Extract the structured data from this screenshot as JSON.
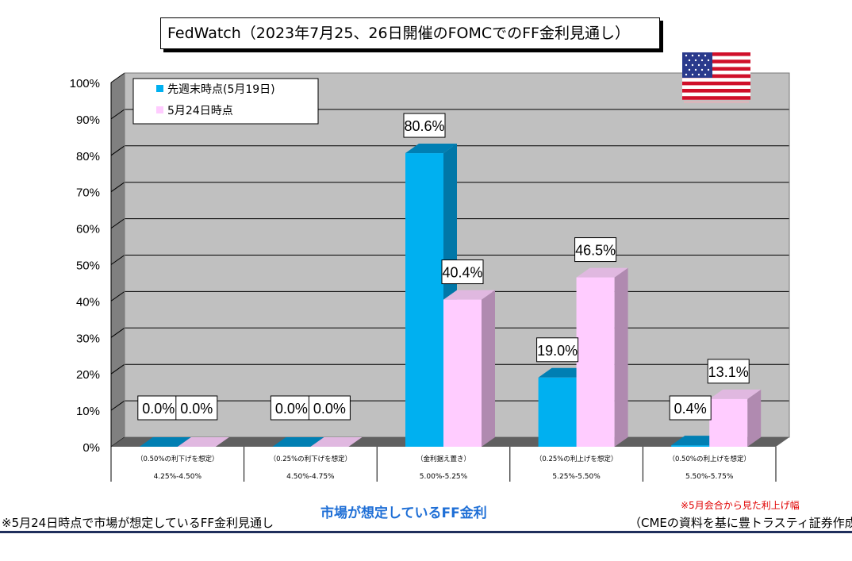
{
  "title": "FedWatch（2023年7月25、26日開催のFOMCでのFF金利見通し）",
  "chart_data": {
    "type": "bar",
    "categories": [
      {
        "desc": "（0.50%の利下げを想定）",
        "range": "4.25%-4.50%"
      },
      {
        "desc": "（0.25%の利下げを想定）",
        "range": "4.50%-4.75%"
      },
      {
        "desc": "（金利据え置き）",
        "range": "5.00%-5.25%"
      },
      {
        "desc": "（0.25%の利上げを想定）",
        "range": "5.25%-5.50%"
      },
      {
        "desc": "（0.50%の利上げを想定）",
        "range": "5.50%-5.75%"
      }
    ],
    "series": [
      {
        "name": "先週末時点(5月19日)",
        "color": "#00b0f0",
        "values": [
          0.0,
          0.0,
          80.6,
          19.0,
          0.4
        ],
        "labels": [
          "0.0%",
          "0.0%",
          "80.6%",
          "19.0%",
          "0.4%"
        ]
      },
      {
        "name": "5月24日時点",
        "color": "#ffccff",
        "values": [
          0.0,
          0.0,
          40.4,
          46.5,
          13.1
        ],
        "labels": [
          "0.0%",
          "0.0%",
          "40.4%",
          "46.5%",
          "13.1%"
        ]
      }
    ],
    "yticks": [
      "0%",
      "10%",
      "20%",
      "30%",
      "40%",
      "50%",
      "60%",
      "70%",
      "80%",
      "90%",
      "100%"
    ],
    "ylim": [
      0,
      100
    ],
    "grid": true,
    "legend": "top-left",
    "xlabel": "市場が想定しているFF金利"
  },
  "notes": {
    "left": "※5月24日時点で市場が想定しているFF金利見通し",
    "red": "※5月会合から見た利上げ幅",
    "source": "（CMEの資料を基に豊トラスティ証券作成）"
  },
  "flag_icon": "us-flag-icon"
}
